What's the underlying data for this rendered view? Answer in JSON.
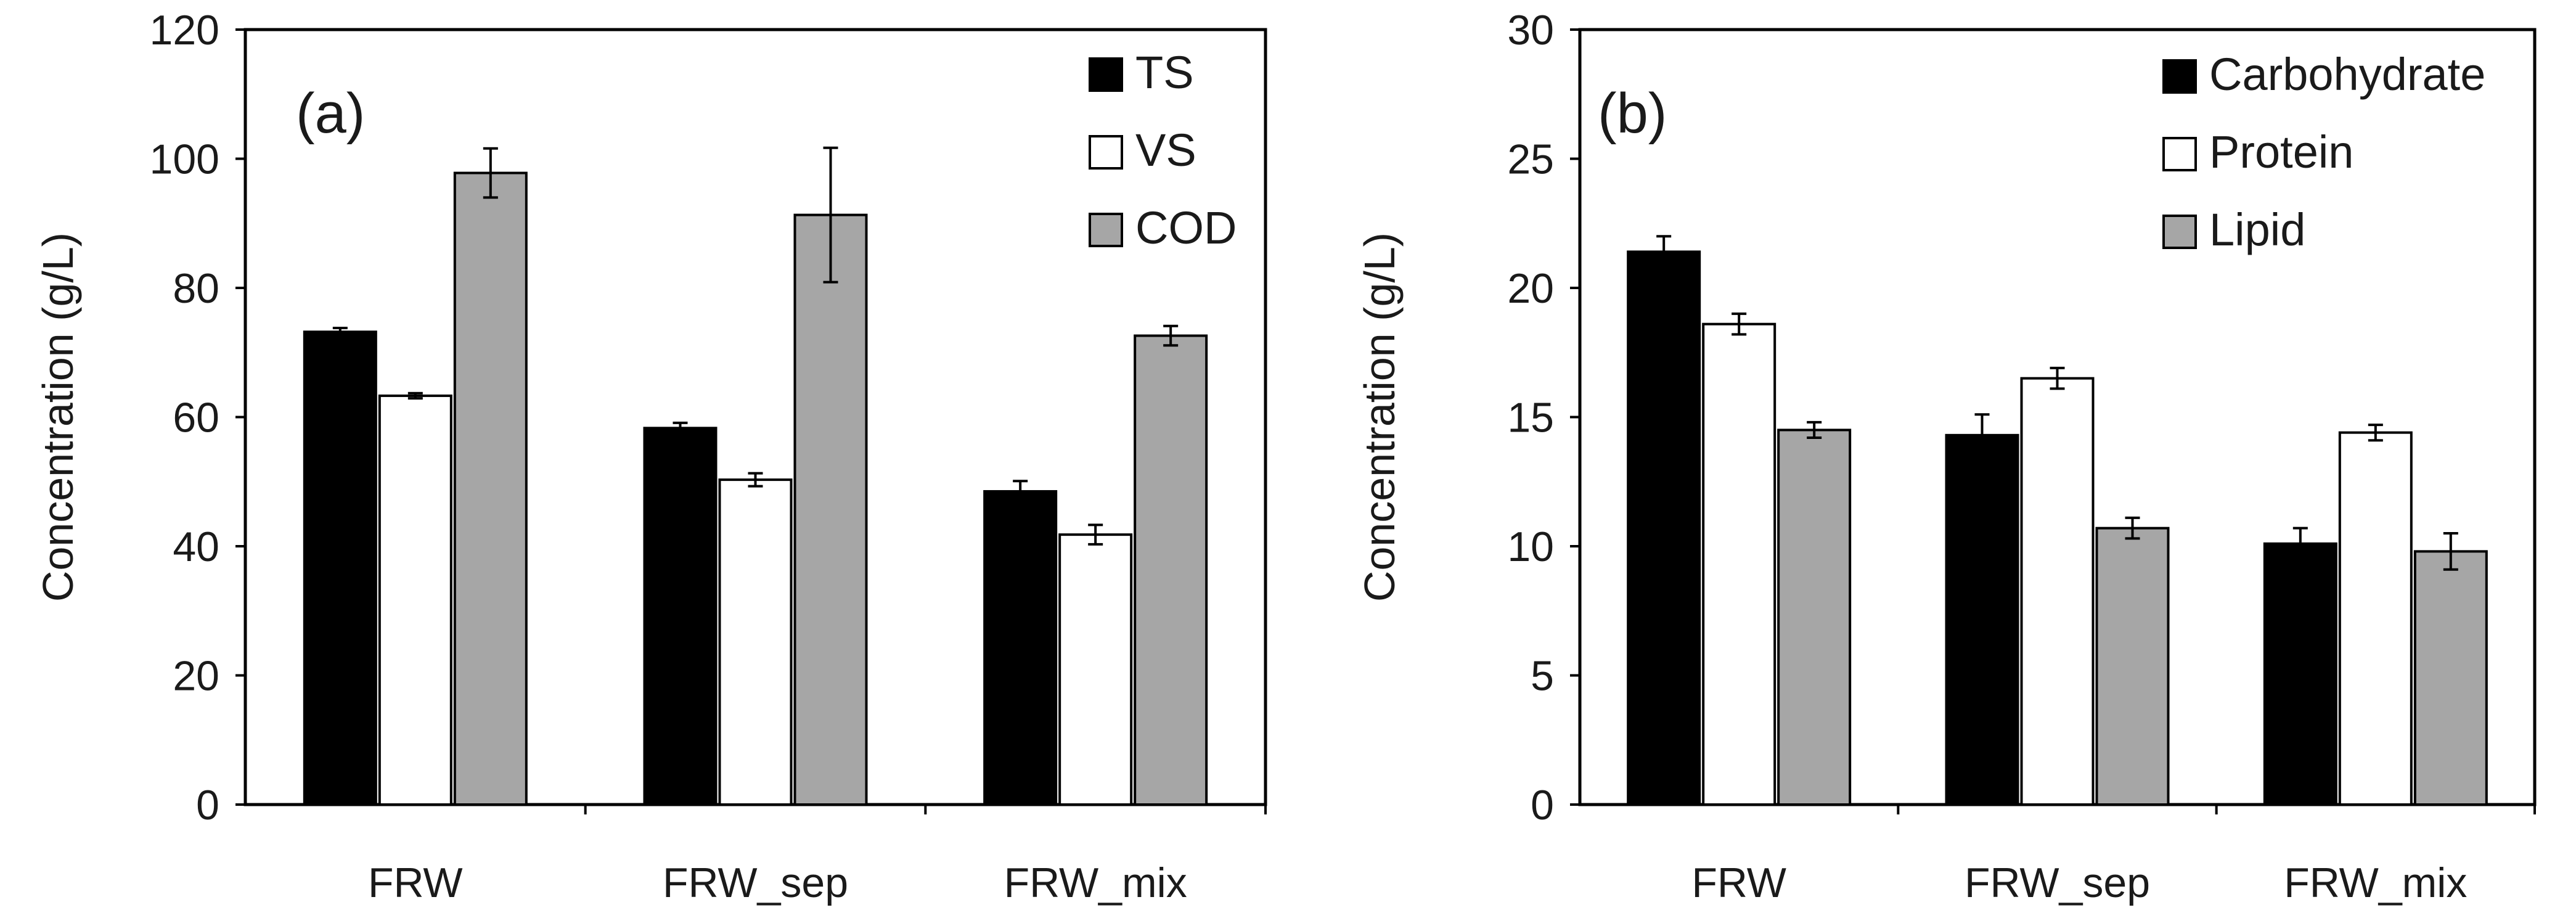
{
  "chart_data": [
    {
      "type": "bar",
      "panel_label": "(a)",
      "title": "",
      "xlabel": "",
      "ylabel": "Concentration (g/L)",
      "ylim": [
        0,
        120
      ],
      "yticks": [
        0,
        20,
        40,
        60,
        80,
        100,
        120
      ],
      "grid": false,
      "legend": "top-right",
      "categories": [
        "FRW",
        "FRW_sep",
        "FRW_mix"
      ],
      "series": [
        {
          "name": "TS",
          "color": "#000000",
          "values": [
            73.2,
            58.3,
            48.5
          ],
          "errors": [
            0.6,
            0.8,
            1.6
          ]
        },
        {
          "name": "VS",
          "color": "#ffffff",
          "values": [
            63.3,
            50.3,
            41.8
          ],
          "errors": [
            0.4,
            1.0,
            1.5
          ]
        },
        {
          "name": "COD",
          "color": "#a6a6a6",
          "values": [
            97.8,
            91.3,
            72.6
          ],
          "errors": [
            3.8,
            10.4,
            1.5
          ]
        }
      ]
    },
    {
      "type": "bar",
      "panel_label": "(b)",
      "title": "",
      "xlabel": "",
      "ylabel": "Concentration (g/L)",
      "ylim": [
        0,
        30
      ],
      "yticks": [
        0,
        5,
        10,
        15,
        20,
        25,
        30
      ],
      "grid": false,
      "legend": "top-right",
      "categories": [
        "FRW",
        "FRW_sep",
        "FRW_mix"
      ],
      "series": [
        {
          "name": "Carbohydrate",
          "color": "#000000",
          "values": [
            21.4,
            14.3,
            10.1
          ],
          "errors": [
            0.6,
            0.8,
            0.6
          ]
        },
        {
          "name": "Protein",
          "color": "#ffffff",
          "values": [
            18.6,
            16.5,
            14.4
          ],
          "errors": [
            0.4,
            0.4,
            0.3
          ]
        },
        {
          "name": "Lipid",
          "color": "#a6a6a6",
          "values": [
            14.5,
            10.7,
            9.8
          ],
          "errors": [
            0.3,
            0.4,
            0.7
          ]
        }
      ]
    }
  ]
}
